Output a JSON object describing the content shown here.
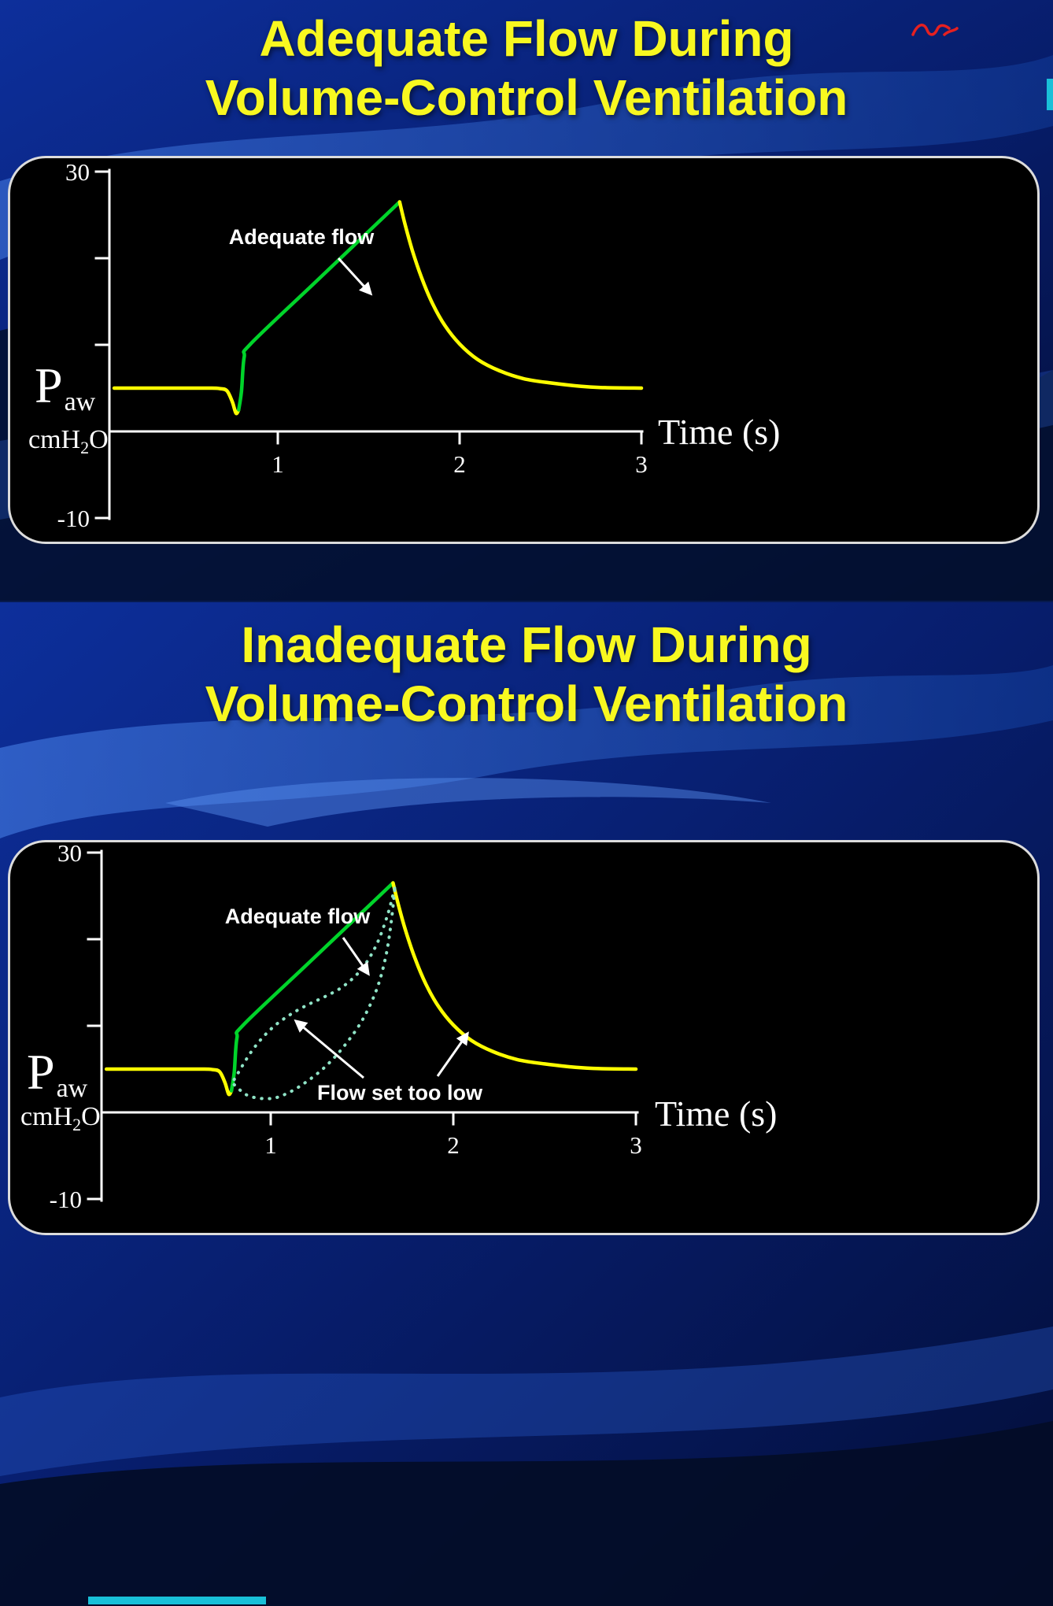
{
  "slide1": {
    "title_line1": "Adequate Flow During",
    "title_line2": "Volume-Control Ventilation"
  },
  "slide2": {
    "title_line1": "Inadequate Flow During",
    "title_line2": "Volume-Control Ventilation"
  },
  "axis_labels": {
    "pressure_main": "P",
    "pressure_sub": "aw",
    "units_pre": "cmH",
    "units_sub": "2",
    "units_post": "O",
    "time": "Time (s)"
  },
  "colors": {
    "title_yellow": "#f8f820",
    "waveform_yellow": "#ffff00",
    "waveform_green": "#00d42a",
    "scooped_dotted_teal": "#8fe3c6",
    "background_blue": "#0d2f9b",
    "panel_black": "#000000",
    "axis_white": "#ffffff",
    "ink_red": "#e62020",
    "accent_cyan": "#19c0d8"
  },
  "chart_data": [
    {
      "type": "line",
      "title": "Adequate Flow During Volume-Control Ventilation",
      "xlabel": "Time (s)",
      "ylabel": "Paw (cmH2O)",
      "xlim": [
        0,
        3.05
      ],
      "ylim": [
        -10,
        30
      ],
      "x_ticks": [
        1,
        2,
        3
      ],
      "y_tick_labels": [
        30,
        -10
      ],
      "y_axis_ticks": [
        30,
        20,
        10,
        -10
      ],
      "grid": false,
      "legend": "none",
      "baseline_peep_cmh2o": 5,
      "peak_pressure_cmh2o": 26.5,
      "series": [
        {
          "name": "baseline-and-patient-trigger",
          "color": "#ffff00",
          "style": "solid",
          "points": [
            [
              0.1,
              5.0
            ],
            [
              0.4,
              5.0
            ],
            [
              0.62,
              5.0
            ],
            [
              0.68,
              4.95
            ],
            [
              0.72,
              4.7
            ],
            [
              0.75,
              3.4
            ],
            [
              0.77,
              2.1
            ],
            [
              0.785,
              2.5
            ]
          ]
        },
        {
          "name": "adequate-flow-inspiration",
          "color": "#00d42a",
          "style": "solid",
          "points": [
            [
              0.785,
              2.5
            ],
            [
              0.8,
              4.6
            ],
            [
              0.815,
              8.6
            ],
            [
              0.85,
              10.1
            ],
            [
              1.2,
              17.1
            ],
            [
              1.45,
              22.1
            ],
            [
              1.67,
              26.5
            ]
          ]
        },
        {
          "name": "expiration-decay",
          "color": "#ffff00",
          "style": "solid",
          "points": [
            [
              1.67,
              26.5
            ],
            [
              1.7,
              23.9
            ],
            [
              1.74,
              20.9
            ],
            [
              1.79,
              17.8
            ],
            [
              1.85,
              14.8
            ],
            [
              1.92,
              12.2
            ],
            [
              2.0,
              10.1
            ],
            [
              2.1,
              8.3
            ],
            [
              2.22,
              7.0
            ],
            [
              2.35,
              6.1
            ],
            [
              2.5,
              5.6
            ],
            [
              2.67,
              5.2
            ],
            [
              2.8,
              5.05
            ],
            [
              3.0,
              5.0
            ]
          ]
        }
      ],
      "annotations": [
        {
          "text": "Adequate flow",
          "points_to": "adequate-flow-inspiration"
        }
      ]
    },
    {
      "type": "line",
      "title": "Inadequate Flow During Volume-Control Ventilation",
      "xlabel": "Time (s)",
      "ylabel": "Paw (cmH2O)",
      "xlim": [
        0,
        3.05
      ],
      "ylim": [
        -10,
        30
      ],
      "x_ticks": [
        1,
        2,
        3
      ],
      "y_tick_labels": [
        30,
        -10
      ],
      "y_axis_ticks": [
        30,
        20,
        10,
        -10
      ],
      "grid": false,
      "legend": "none",
      "baseline_peep_cmh2o": 5,
      "peak_pressure_cmh2o": 26.5,
      "series": [
        {
          "name": "baseline-and-patient-trigger",
          "color": "#ffff00",
          "style": "solid",
          "points": [
            [
              0.1,
              5.0
            ],
            [
              0.4,
              5.0
            ],
            [
              0.62,
              5.0
            ],
            [
              0.68,
              4.95
            ],
            [
              0.72,
              4.7
            ],
            [
              0.75,
              3.4
            ],
            [
              0.77,
              2.1
            ],
            [
              0.785,
              2.5
            ]
          ]
        },
        {
          "name": "adequate-flow-inspiration",
          "color": "#00d42a",
          "style": "solid",
          "points": [
            [
              0.785,
              2.5
            ],
            [
              0.8,
              4.6
            ],
            [
              0.815,
              8.6
            ],
            [
              0.85,
              10.1
            ],
            [
              1.2,
              17.1
            ],
            [
              1.45,
              22.1
            ],
            [
              1.67,
              26.5
            ]
          ]
        },
        {
          "name": "expiration-decay",
          "color": "#ffff00",
          "style": "solid",
          "points": [
            [
              1.67,
              26.5
            ],
            [
              1.7,
              23.9
            ],
            [
              1.74,
              20.9
            ],
            [
              1.79,
              17.8
            ],
            [
              1.85,
              14.8
            ],
            [
              1.92,
              12.2
            ],
            [
              2.0,
              10.1
            ],
            [
              2.1,
              8.3
            ],
            [
              2.22,
              7.0
            ],
            [
              2.35,
              6.1
            ],
            [
              2.5,
              5.6
            ],
            [
              2.67,
              5.2
            ],
            [
              2.8,
              5.05
            ],
            [
              3.0,
              5.0
            ]
          ]
        },
        {
          "name": "inadequate-flow-scooped-upper",
          "color": "#8fe3c6",
          "style": "dotted",
          "points": [
            [
              0.8,
              3.8
            ],
            [
              0.9,
              7.2
            ],
            [
              1.0,
              9.6
            ],
            [
              1.1,
              11.2
            ],
            [
              1.2,
              12.4
            ],
            [
              1.3,
              13.4
            ],
            [
              1.4,
              14.6
            ],
            [
              1.5,
              16.6
            ],
            [
              1.58,
              19.4
            ],
            [
              1.64,
              22.8
            ],
            [
              1.68,
              26.0
            ]
          ]
        },
        {
          "name": "inadequate-flow-scooped-lower",
          "color": "#8fe3c6",
          "style": "dotted",
          "points": [
            [
              0.8,
              3.2
            ],
            [
              0.88,
              1.9
            ],
            [
              1.0,
              1.6
            ],
            [
              1.1,
              2.3
            ],
            [
              1.2,
              3.6
            ],
            [
              1.3,
              5.3
            ],
            [
              1.4,
              7.6
            ],
            [
              1.5,
              10.6
            ],
            [
              1.58,
              14.2
            ],
            [
              1.63,
              18.0
            ],
            [
              1.66,
              22.0
            ],
            [
              1.68,
              26.0
            ]
          ]
        }
      ],
      "annotations": [
        {
          "text": "Adequate flow",
          "points_to": "adequate-flow-inspiration"
        },
        {
          "text": "Flow set too low",
          "points_to": "inadequate-flow-scooped-curves"
        }
      ]
    }
  ]
}
